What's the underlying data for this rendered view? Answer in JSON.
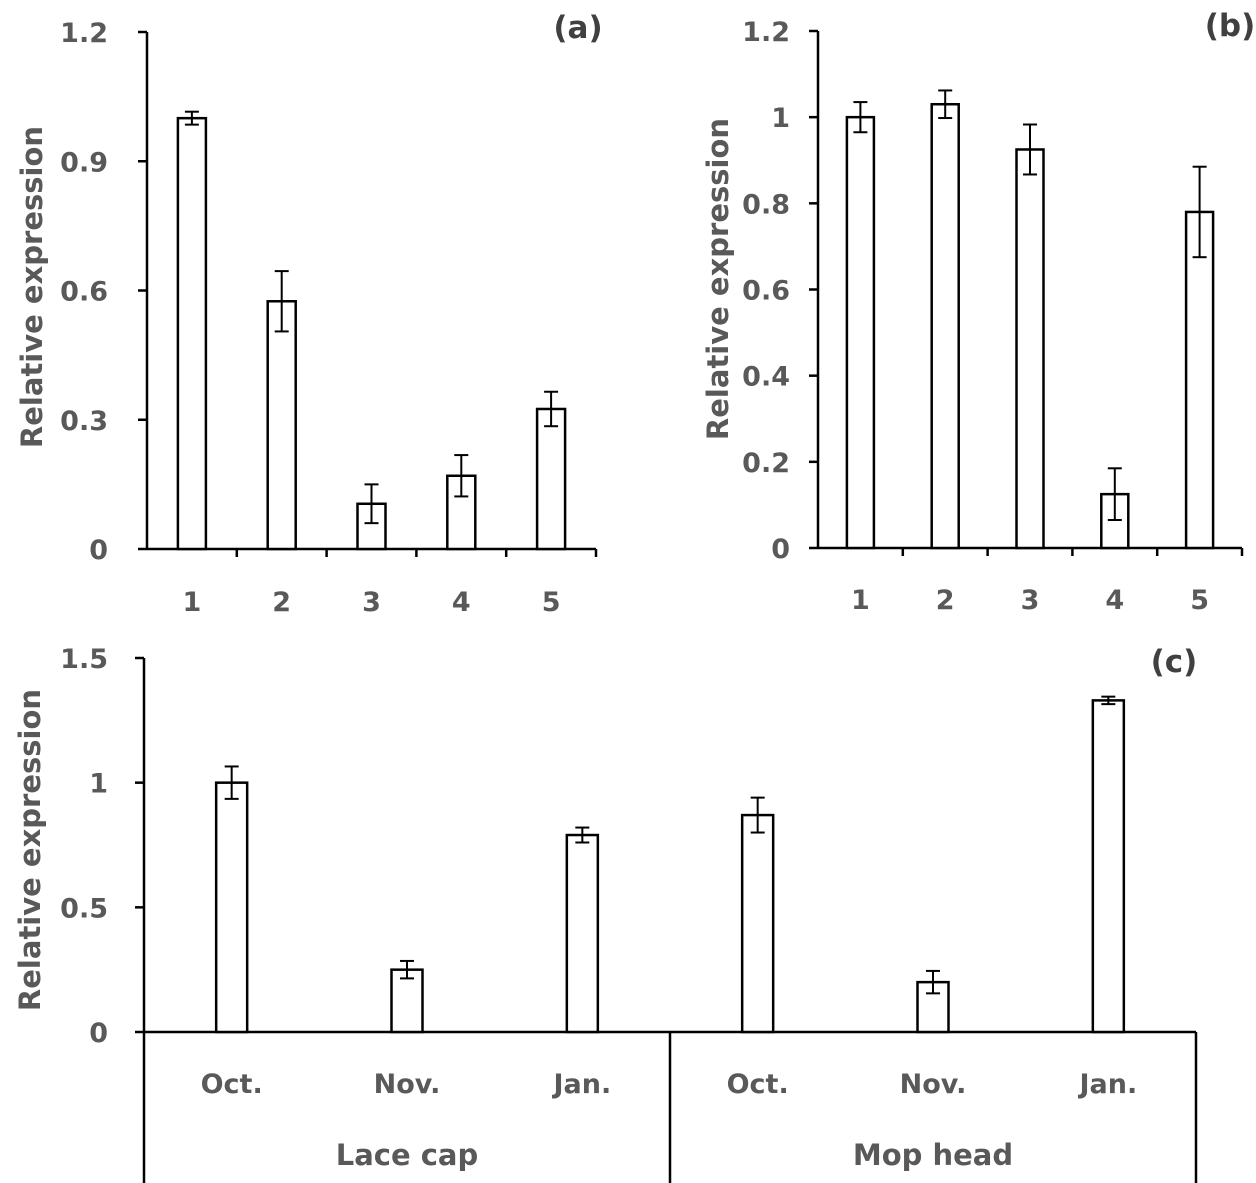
{
  "chart_data": [
    {
      "panel": "(a)",
      "type": "bar",
      "ylabel": "Relative expression",
      "xlabel": "",
      "ylim": [
        0,
        1.2
      ],
      "yticks": [
        0,
        0.3,
        0.6,
        0.9,
        1.2
      ],
      "ytick_labels": [
        "0",
        "0.3",
        "0.6",
        "0.9",
        "1.2"
      ],
      "categories": [
        "1",
        "2",
        "3",
        "4",
        "5"
      ],
      "values": [
        1.0,
        0.575,
        0.105,
        0.17,
        0.325
      ],
      "errors": [
        0.015,
        0.07,
        0.045,
        0.048,
        0.04
      ],
      "grid": false,
      "legend": "none"
    },
    {
      "panel": "(b)",
      "type": "bar",
      "ylabel": "Relative expression",
      "xlabel": "",
      "ylim": [
        0,
        1.2
      ],
      "yticks": [
        0,
        0.2,
        0.4,
        0.6,
        0.8,
        1,
        1.2
      ],
      "ytick_labels": [
        "0",
        "0.2",
        "0.4",
        "0.6",
        "0.8",
        "1",
        "1.2"
      ],
      "categories": [
        "1",
        "2",
        "3",
        "4",
        "5"
      ],
      "values": [
        1.0,
        1.03,
        0.925,
        0.125,
        0.78
      ],
      "errors": [
        0.035,
        0.032,
        0.058,
        0.06,
        0.105
      ],
      "grid": false,
      "legend": "none"
    },
    {
      "panel": "(c)",
      "type": "bar",
      "ylabel": "Relative expression",
      "xlabel": "",
      "ylim": [
        0,
        1.5
      ],
      "yticks": [
        0,
        0.5,
        1,
        1.5
      ],
      "ytick_labels": [
        "0",
        "0.5",
        "1",
        "1.5"
      ],
      "categories": [
        "Oct.",
        "Nov.",
        "Jan.",
        "Oct.",
        "Nov.",
        "Jan."
      ],
      "groups": [
        "Lace cap",
        "Mop head"
      ],
      "values": [
        1.0,
        0.25,
        0.79,
        0.87,
        0.2,
        1.33
      ],
      "errors": [
        0.065,
        0.035,
        0.03,
        0.07,
        0.045,
        0.015
      ],
      "grid": false,
      "legend": "none"
    }
  ]
}
